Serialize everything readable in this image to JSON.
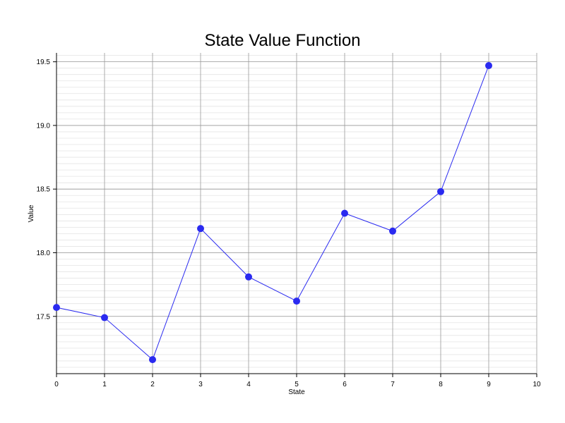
{
  "chart_data": {
    "type": "line",
    "title": "State Value Function",
    "xlabel": "State",
    "ylabel": "Value",
    "xlim": [
      0,
      10
    ],
    "ylim": [
      17.05,
      19.57
    ],
    "x_ticks": [
      "0",
      "1",
      "2",
      "3",
      "4",
      "5",
      "6",
      "7",
      "8",
      "9",
      "10"
    ],
    "y_ticks": [
      "17.5",
      "18.0",
      "18.5",
      "19.0",
      "19.5"
    ],
    "grid": true,
    "series": [
      {
        "color": "#2a2af0",
        "x": [
          0,
          1,
          2,
          3,
          4,
          5,
          6,
          7,
          8,
          9
        ],
        "values": [
          17.57,
          17.49,
          17.16,
          18.19,
          17.81,
          17.62,
          18.31,
          18.17,
          18.48,
          19.47
        ]
      }
    ]
  }
}
